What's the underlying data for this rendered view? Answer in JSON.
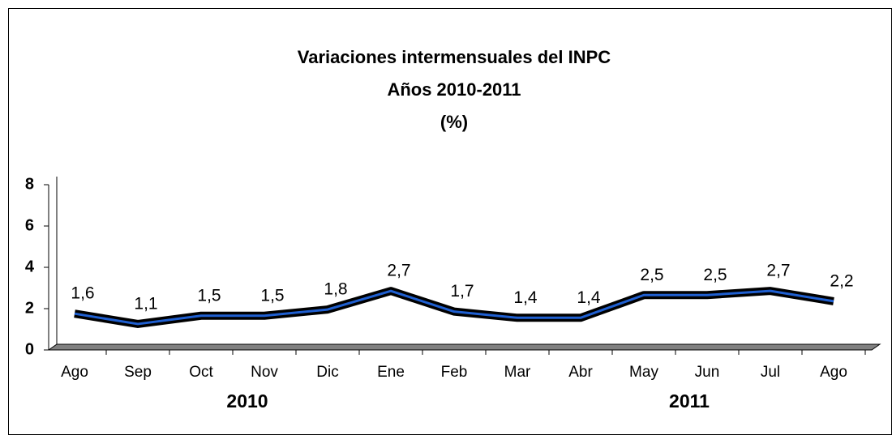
{
  "chart_data": {
    "type": "line",
    "title": [
      "Variaciones intermensuales del INPC",
      "Años 2010-2011",
      "(%)"
    ],
    "categories": [
      "Ago",
      "Sep",
      "Oct",
      "Nov",
      "Dic",
      "Ene",
      "Feb",
      "Mar",
      "Abr",
      "May",
      "Jun",
      "Jul",
      "Ago"
    ],
    "x_groups": [
      "2010",
      "2011"
    ],
    "series": [
      {
        "color": "#1f5fd0",
        "values": [
          1.6,
          1.1,
          1.5,
          1.5,
          1.8,
          2.7,
          1.7,
          1.4,
          1.4,
          2.5,
          2.5,
          2.7,
          2.2
        ],
        "value_labels": [
          "1,6",
          "1,1",
          "1,5",
          "1,5",
          "1,8",
          "2,7",
          "1,7",
          "1,4",
          "1,4",
          "2,5",
          "2,5",
          "2,7",
          "2,2"
        ]
      }
    ],
    "ylim": [
      0,
      8
    ],
    "yticks": [
      0,
      2,
      4,
      6,
      8
    ],
    "grid": false
  }
}
